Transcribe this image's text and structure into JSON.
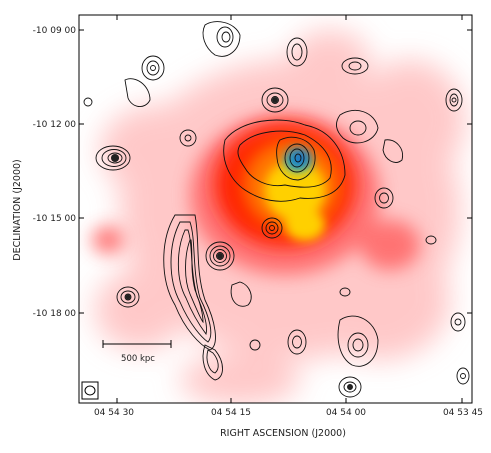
{
  "figure": {
    "x_axis_label": "RIGHT ASCENSION (J2000)",
    "y_axis_label": "DECLINATION (J2000)",
    "x_ticks": [
      "04 54 30",
      "04 54 15",
      "04 54 00",
      "04 53 45"
    ],
    "y_ticks": [
      "-10 09 00",
      "-10 12 00",
      "-10 15 00",
      "-10 18 00"
    ],
    "scale_bar_label": "500 kpc"
  },
  "colors": {
    "frame": "#000000",
    "contours": "#111111",
    "emission_outer": "#ff9a9a",
    "emission_mid": "#ff2a00",
    "emission_core": "#ffd000",
    "emission_peak": "#1aa0c8"
  }
}
